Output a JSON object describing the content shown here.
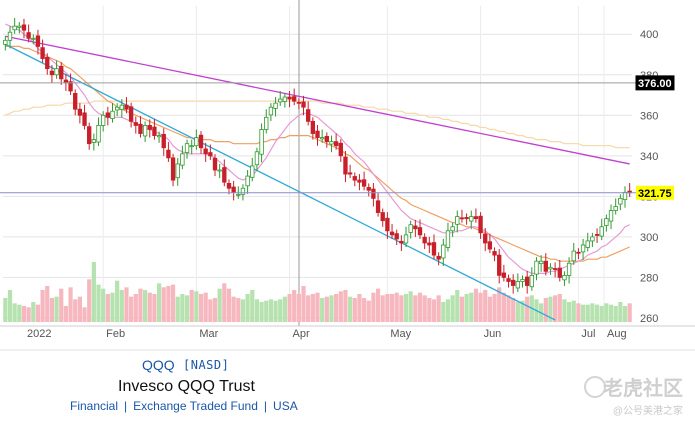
{
  "header": {
    "ticker": "QQQ",
    "exchange": "[NASD]",
    "fund_name": "Invesco QQQ Trust",
    "tags": [
      "Financial",
      "Exchange Traded Fund",
      "USA"
    ]
  },
  "watermark": {
    "main": "老虎社区",
    "sub": "@公号美港之家"
  },
  "chart_data": {
    "type": "candlestick",
    "x_labels": [
      "2022",
      "Feb",
      "Mar",
      "Apr",
      "May",
      "Jun",
      "Jul",
      "Aug"
    ],
    "y_ticks": [
      260,
      280,
      300,
      320,
      340,
      360,
      380,
      400
    ],
    "ylim": [
      258,
      409
    ],
    "grid": true,
    "markers": [
      {
        "label": "376.00",
        "value": 376,
        "color": "#000000",
        "text_color": "#ffffff"
      },
      {
        "label": "321.75",
        "value": 321.75,
        "color": "#ffff00",
        "text_color": "#000000"
      }
    ],
    "closes": [
      397,
      401,
      404,
      404,
      402,
      398,
      398,
      394,
      388,
      383,
      380,
      383,
      378,
      376,
      372,
      363,
      360,
      355,
      346,
      348,
      355,
      360,
      359,
      362,
      364,
      365,
      363,
      357,
      355,
      351,
      355,
      353,
      350,
      350,
      344,
      339,
      328,
      336,
      341,
      346,
      345,
      349,
      344,
      341,
      340,
      333,
      333,
      327,
      324,
      322,
      321,
      324,
      330,
      335,
      342,
      353,
      359,
      364,
      366,
      368,
      369,
      368,
      367,
      366,
      364,
      357,
      351,
      349,
      349,
      347,
      347,
      345,
      340,
      331,
      331,
      328,
      327,
      325,
      323,
      319,
      312,
      308,
      303,
      301,
      299,
      297,
      301,
      306,
      304,
      301,
      297,
      296,
      291,
      289,
      296,
      303,
      305,
      310,
      309,
      309,
      310,
      309,
      302,
      297,
      294,
      291,
      281,
      280,
      278,
      276,
      278,
      279,
      276,
      281,
      288,
      288,
      283,
      285,
      284,
      280,
      281,
      287,
      293,
      292,
      296,
      298,
      300,
      301,
      305,
      309,
      313,
      315,
      319,
      322,
      321.75
    ],
    "volume": [
      18,
      24,
      14,
      13,
      12,
      11,
      15,
      13,
      24,
      27,
      18,
      19,
      25,
      12,
      26,
      17,
      19,
      11,
      32,
      45,
      28,
      25,
      21,
      22,
      31,
      24,
      26,
      19,
      21,
      25,
      24,
      22,
      21,
      29,
      26,
      27,
      28,
      19,
      21,
      20,
      24,
      23,
      21,
      22,
      17,
      18,
      25,
      29,
      25,
      19,
      18,
      17,
      21,
      24,
      17,
      15,
      16,
      17,
      16,
      17,
      19,
      21,
      24,
      21,
      27,
      20,
      21,
      22,
      18,
      19,
      20,
      21,
      23,
      24,
      19,
      18,
      21,
      18,
      16,
      22,
      25,
      20,
      21,
      21,
      22,
      20,
      21,
      23,
      20,
      22,
      20,
      18,
      17,
      20,
      15,
      17,
      20,
      24,
      19,
      21,
      22,
      25,
      22,
      24,
      19,
      21,
      26,
      22,
      20,
      18,
      15,
      16,
      19,
      20,
      17,
      14,
      18,
      19,
      20,
      21,
      17,
      15,
      16,
      14,
      13,
      13,
      14,
      13,
      12,
      14,
      13,
      12,
      15,
      12,
      14
    ],
    "sma_short": [
      405,
      404,
      403,
      402,
      400,
      398,
      396,
      393,
      391,
      389,
      387,
      385,
      383,
      381,
      379,
      376,
      373,
      370,
      366,
      363,
      361,
      360,
      359,
      359,
      359,
      359,
      358,
      357,
      356,
      355,
      354,
      353,
      352,
      351,
      350,
      348,
      345,
      343,
      342,
      341,
      341,
      341,
      341,
      341,
      340,
      339,
      337,
      335,
      333,
      331,
      329,
      328,
      329,
      330,
      333,
      336,
      339,
      343,
      347,
      350,
      353,
      356,
      358,
      360,
      361,
      361,
      360,
      359,
      357,
      355,
      353,
      351,
      349,
      346,
      344,
      341,
      339,
      337,
      334,
      331,
      328,
      325,
      322,
      319,
      316,
      313,
      311,
      309,
      308,
      307,
      306,
      305,
      304,
      303,
      302,
      302,
      302,
      303,
      303,
      304,
      305,
      305,
      304,
      303,
      301,
      299,
      296,
      293,
      290,
      288,
      286,
      284,
      283,
      282,
      282,
      282,
      282,
      283,
      283,
      284,
      285,
      286,
      287,
      288,
      289,
      291,
      292,
      293,
      295,
      296,
      298,
      300,
      302,
      305,
      306
    ],
    "sma_mid": [
      394,
      394,
      394,
      394,
      393,
      393,
      392,
      391,
      390,
      389,
      388,
      387,
      386,
      384,
      383,
      381,
      379,
      377,
      375,
      373,
      371,
      369,
      367,
      366,
      364,
      363,
      362,
      361,
      360,
      359,
      358,
      357,
      356,
      355,
      354,
      353,
      352,
      351,
      350,
      349,
      349,
      348,
      348,
      348,
      348,
      347,
      347,
      347,
      347,
      346,
      346,
      346,
      346,
      346,
      346,
      347,
      347,
      348,
      348,
      349,
      349,
      350,
      350,
      350,
      350,
      350,
      349,
      348,
      347,
      346,
      345,
      344,
      343,
      341,
      340,
      338,
      336,
      334,
      333,
      331,
      329,
      327,
      325,
      323,
      321,
      319,
      318,
      316,
      315,
      314,
      313,
      312,
      311,
      310,
      309,
      308,
      307,
      307,
      306,
      305,
      305,
      304,
      303,
      302,
      301,
      300,
      299,
      298,
      297,
      296,
      295,
      294,
      293,
      292,
      291,
      290,
      290,
      289,
      289,
      288,
      288,
      288,
      288,
      288,
      288,
      289,
      289,
      289,
      290,
      290,
      291,
      292,
      293,
      294,
      295
    ],
    "sma_long": [
      360,
      361,
      362,
      362,
      363,
      363,
      364,
      364,
      364,
      365,
      365,
      365,
      365,
      366,
      366,
      366,
      366,
      366,
      366,
      367,
      367,
      367,
      367,
      367,
      367,
      367,
      367,
      367,
      367,
      367,
      367,
      367,
      367,
      367,
      367,
      367,
      367,
      367,
      367,
      367,
      367,
      367,
      367,
      367,
      367,
      367,
      367,
      367,
      367,
      367,
      367,
      367,
      367,
      367,
      367,
      367,
      367,
      367,
      367,
      367,
      367,
      367,
      367,
      367,
      367,
      367,
      367,
      367,
      366,
      366,
      366,
      366,
      366,
      365,
      365,
      365,
      365,
      364,
      364,
      364,
      363,
      363,
      363,
      362,
      362,
      362,
      361,
      361,
      361,
      360,
      360,
      359,
      359,
      359,
      358,
      358,
      357,
      357,
      356,
      356,
      355,
      355,
      354,
      354,
      353,
      353,
      352,
      352,
      351,
      351,
      350,
      350,
      349,
      349,
      348,
      348,
      348,
      347,
      347,
      347,
      346,
      346,
      346,
      346,
      345,
      345,
      345,
      345,
      345,
      345,
      345,
      344,
      344,
      344,
      344
    ],
    "trendlines": [
      {
        "color": "#c040d0",
        "from": [
          0,
          399
        ],
        "to": [
          134,
          336
        ]
      },
      {
        "color": "#30a8d8",
        "from": [
          0,
          395
        ],
        "to": [
          118,
          259
        ]
      }
    ]
  }
}
